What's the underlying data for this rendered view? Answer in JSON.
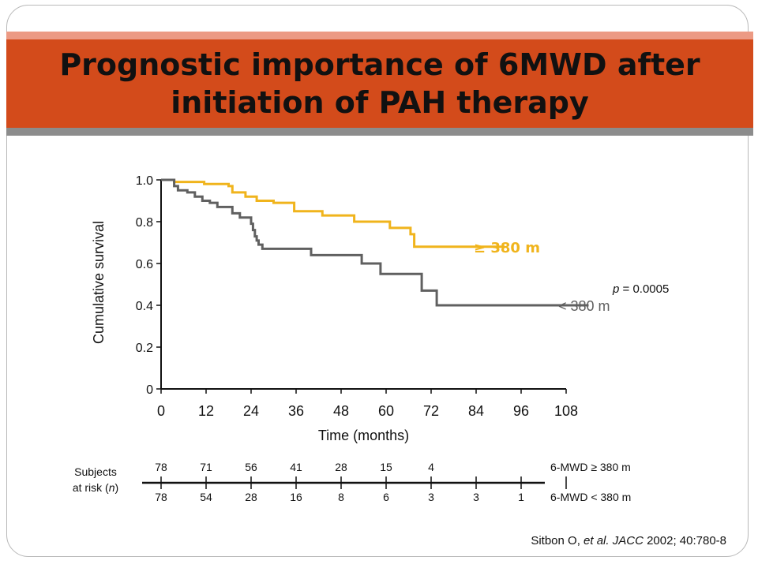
{
  "slide": {
    "title_line1": "Prognostic importance of 6MWD after",
    "title_line2": "initiation of PAH therapy",
    "citation_pre": "Sitbon O, ",
    "citation_etal": "et al.",
    "citation_journal": " JACC",
    "citation_post": " 2002; 40:780-8",
    "risk_label_line1": "Subjects",
    "risk_label_line2_pre": "at risk (",
    "risk_label_line2_n": "n",
    "risk_label_line2_post": ")"
  },
  "colors": {
    "high_group": "#f0b41c",
    "low_group": "#606060",
    "title_bar": "#d34b1b",
    "axis": "#111111"
  },
  "chart_data": {
    "type": "line",
    "title": "",
    "xlabel": "Time (months)",
    "ylabel": "Cumulative survival",
    "xlim": [
      0,
      108
    ],
    "ylim": [
      0,
      1.0
    ],
    "x_ticks": [
      0,
      12,
      24,
      36,
      48,
      60,
      72,
      84,
      96,
      108
    ],
    "y_ticks": [
      0,
      0.2,
      0.4,
      0.6,
      0.8,
      1.0
    ],
    "y_tick_labels": [
      "0",
      "0.2",
      "0.4",
      "0.6",
      "0.8",
      "1.0"
    ],
    "annotation": {
      "p_prefix": "p",
      "p_rest": " = 0.0005"
    },
    "series": [
      {
        "name": "≥ 380 m",
        "color": "#f0b41c",
        "points": [
          [
            0,
            1.0
          ],
          [
            3.5,
            1.0
          ],
          [
            3.5,
            0.99
          ],
          [
            11.5,
            0.99
          ],
          [
            11.5,
            0.98
          ],
          [
            18,
            0.98
          ],
          [
            18,
            0.97
          ],
          [
            19,
            0.97
          ],
          [
            19,
            0.94
          ],
          [
            22.5,
            0.94
          ],
          [
            22.5,
            0.92
          ],
          [
            25.5,
            0.92
          ],
          [
            25.5,
            0.9
          ],
          [
            30,
            0.9
          ],
          [
            30,
            0.89
          ],
          [
            35.5,
            0.89
          ],
          [
            35.5,
            0.85
          ],
          [
            43,
            0.85
          ],
          [
            43,
            0.83
          ],
          [
            51.5,
            0.83
          ],
          [
            51.5,
            0.8
          ],
          [
            61,
            0.8
          ],
          [
            61,
            0.77
          ],
          [
            66.5,
            0.77
          ],
          [
            66.5,
            0.74
          ],
          [
            67.5,
            0.74
          ],
          [
            67.5,
            0.68
          ],
          [
            91.5,
            0.68
          ]
        ]
      },
      {
        "name": "< 380 m",
        "color": "#606060",
        "points": [
          [
            0,
            1.0
          ],
          [
            3.5,
            1.0
          ],
          [
            3.5,
            0.97
          ],
          [
            4.5,
            0.97
          ],
          [
            4.5,
            0.95
          ],
          [
            7,
            0.95
          ],
          [
            7,
            0.94
          ],
          [
            9,
            0.94
          ],
          [
            9,
            0.92
          ],
          [
            11,
            0.92
          ],
          [
            11,
            0.9
          ],
          [
            13,
            0.9
          ],
          [
            13,
            0.89
          ],
          [
            15,
            0.89
          ],
          [
            15,
            0.87
          ],
          [
            19,
            0.87
          ],
          [
            19,
            0.84
          ],
          [
            21,
            0.84
          ],
          [
            21,
            0.82
          ],
          [
            24,
            0.82
          ],
          [
            24,
            0.79
          ],
          [
            24.5,
            0.79
          ],
          [
            24.5,
            0.76
          ],
          [
            25,
            0.76
          ],
          [
            25,
            0.73
          ],
          [
            25.5,
            0.73
          ],
          [
            25.5,
            0.71
          ],
          [
            26,
            0.71
          ],
          [
            26,
            0.69
          ],
          [
            27,
            0.69
          ],
          [
            27,
            0.67
          ],
          [
            40,
            0.67
          ],
          [
            40,
            0.64
          ],
          [
            53.5,
            0.64
          ],
          [
            53.5,
            0.6
          ],
          [
            58.5,
            0.6
          ],
          [
            58.5,
            0.55
          ],
          [
            69.5,
            0.55
          ],
          [
            69.5,
            0.47
          ],
          [
            73.5,
            0.47
          ],
          [
            73.5,
            0.4
          ],
          [
            114,
            0.4
          ]
        ]
      }
    ],
    "series_labels": [
      {
        "series": 0,
        "text": "≥ 380 m",
        "at_y": 0.68
      },
      {
        "series": 1,
        "text": "< 380 m",
        "at_y": 0.4
      }
    ],
    "risk_table": {
      "rows": [
        {
          "label": "6-MWD ≥ 380 m",
          "values": [
            "78",
            "71",
            "56",
            "41",
            "28",
            "15",
            "4"
          ]
        },
        {
          "label": "6-MWD < 380 m",
          "values": [
            "78",
            "54",
            "28",
            "16",
            "8",
            "6",
            "3",
            "3",
            "1"
          ]
        }
      ]
    }
  }
}
